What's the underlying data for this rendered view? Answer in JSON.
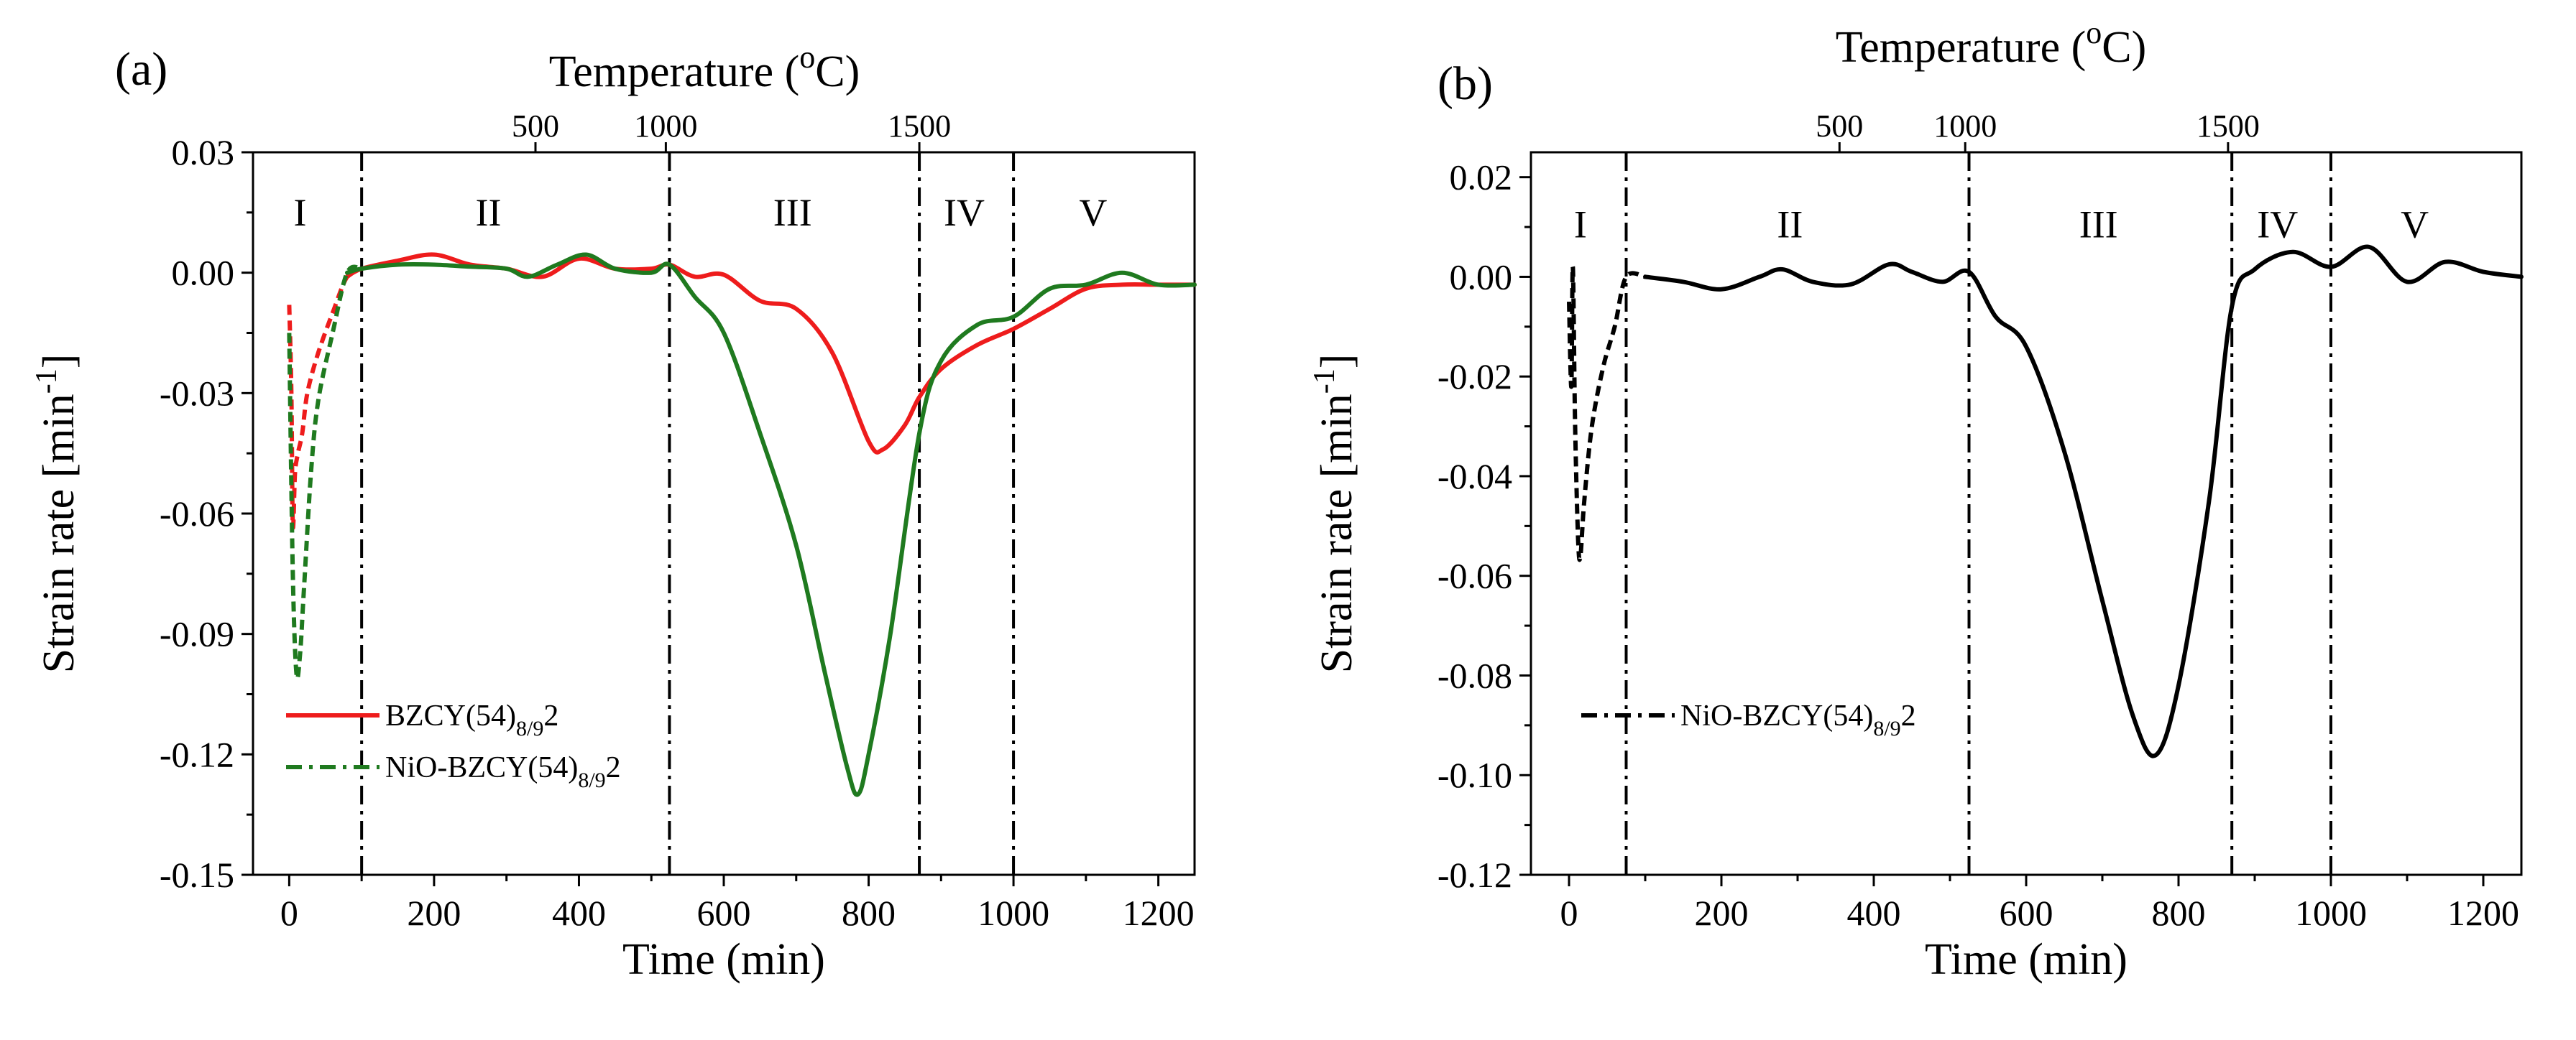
{
  "colors": {
    "red_series": "#ee1c1c",
    "green_series": "#1f7a1f",
    "black_series": "#000000",
    "axis": "#000000"
  },
  "chart_data": [
    {
      "type": "line",
      "panel_label": "(a)",
      "top_axis_title": "Temperature (",
      "top_axis_unit_sup": "o",
      "top_axis_unit_tail": "C)",
      "xlabel": "Time (min)",
      "ylabel_main": "Strain rate [min",
      "ylabel_sup": "-1",
      "ylabel_tail": "]",
      "xlim": [
        -50,
        1250
      ],
      "ylim": [
        -0.15,
        0.03
      ],
      "x_ticks": [
        0,
        200,
        400,
        600,
        800,
        1000,
        1200
      ],
      "x_tick_labels": [
        "0",
        "200",
        "400",
        "600",
        "800",
        "1000",
        "1200"
      ],
      "y_ticks": [
        0.03,
        0.0,
        -0.03,
        -0.06,
        -0.09,
        -0.12,
        -0.15
      ],
      "y_tick_labels": [
        "0.03",
        "0.00",
        "-0.03",
        "-0.06",
        "-0.09",
        "-0.12",
        "-0.15"
      ],
      "top_ticks": [
        {
          "x": 340,
          "label": "500"
        },
        {
          "x": 520,
          "label": "1000"
        },
        {
          "x": 870,
          "label": "1500"
        }
      ],
      "regions": [
        {
          "label": "I",
          "x": 15
        },
        {
          "label": "II",
          "x": 275
        },
        {
          "label": "III",
          "x": 695
        },
        {
          "label": "IV",
          "x": 932
        },
        {
          "label": "V",
          "x": 1110
        }
      ],
      "region_label_y": 0.015,
      "region_boundaries": [
        100,
        525,
        870,
        1000
      ],
      "series": [
        {
          "name": "BZCY(54)",
          "sub": "8/9",
          "tail": "2",
          "color": "#ee1c1c",
          "points": [
            [
              0,
              -0.008
            ],
            [
              3,
              -0.03
            ],
            [
              5,
              -0.063
            ],
            [
              8,
              -0.05
            ],
            [
              12,
              -0.045
            ],
            [
              18,
              -0.04
            ],
            [
              25,
              -0.03
            ],
            [
              40,
              -0.02
            ],
            [
              60,
              -0.01
            ],
            [
              80,
              -0.001
            ],
            [
              100,
              0.001
            ],
            [
              150,
              0.003
            ],
            [
              200,
              0.0045
            ],
            [
              250,
              0.002
            ],
            [
              300,
              0.001
            ],
            [
              350,
              -0.001
            ],
            [
              400,
              0.0035
            ],
            [
              450,
              0.001
            ],
            [
              500,
              0.001
            ],
            [
              525,
              0.002
            ],
            [
              560,
              -0.001
            ],
            [
              600,
              -0.0005
            ],
            [
              650,
              -0.007
            ],
            [
              700,
              -0.009
            ],
            [
              750,
              -0.02
            ],
            [
              800,
              -0.042
            ],
            [
              820,
              -0.044
            ],
            [
              850,
              -0.038
            ],
            [
              870,
              -0.031
            ],
            [
              900,
              -0.024
            ],
            [
              950,
              -0.018
            ],
            [
              1000,
              -0.014
            ],
            [
              1050,
              -0.009
            ],
            [
              1100,
              -0.004
            ],
            [
              1150,
              -0.003
            ],
            [
              1200,
              -0.003
            ],
            [
              1250,
              -0.003
            ]
          ]
        },
        {
          "name": "NiO-BZCY(54)",
          "sub": "8/9",
          "tail": "2",
          "color": "#1f7a1f",
          "points": [
            [
              0,
              -0.015
            ],
            [
              5,
              -0.075
            ],
            [
              10,
              -0.1
            ],
            [
              15,
              -0.095
            ],
            [
              20,
              -0.08
            ],
            [
              30,
              -0.05
            ],
            [
              40,
              -0.032
            ],
            [
              60,
              -0.015
            ],
            [
              80,
              0.0
            ],
            [
              100,
              0.001
            ],
            [
              150,
              0.002
            ],
            [
              200,
              0.002
            ],
            [
              250,
              0.0015
            ],
            [
              300,
              0.001
            ],
            [
              330,
              -0.001
            ],
            [
              370,
              0.002
            ],
            [
              410,
              0.0045
            ],
            [
              450,
              0.001
            ],
            [
              500,
              0.0
            ],
            [
              525,
              0.002
            ],
            [
              560,
              -0.006
            ],
            [
              600,
              -0.015
            ],
            [
              650,
              -0.04
            ],
            [
              700,
              -0.068
            ],
            [
              740,
              -0.1
            ],
            [
              770,
              -0.123
            ],
            [
              785,
              -0.13
            ],
            [
              800,
              -0.12
            ],
            [
              830,
              -0.09
            ],
            [
              870,
              -0.04
            ],
            [
              900,
              -0.022
            ],
            [
              950,
              -0.013
            ],
            [
              1000,
              -0.011
            ],
            [
              1050,
              -0.004
            ],
            [
              1100,
              -0.003
            ],
            [
              1150,
              0.0
            ],
            [
              1200,
              -0.003
            ],
            [
              1250,
              -0.003
            ]
          ]
        }
      ],
      "legend": [
        {
          "name": "BZCY(54)",
          "sub": "8/9",
          "tail": "2",
          "color": "#ee1c1c",
          "style": "solid"
        },
        {
          "name": "NiO-BZCY(54)",
          "sub": "8/9",
          "tail": "2",
          "color": "#1f7a1f",
          "style": "dashdot"
        }
      ]
    },
    {
      "type": "line",
      "panel_label": "(b)",
      "top_axis_title": "Temperature (",
      "top_axis_unit_sup": "o",
      "top_axis_unit_tail": "C)",
      "xlabel": "Time (min)",
      "ylabel_main": "Strain rate [min",
      "ylabel_sup": "-1",
      "ylabel_tail": "]",
      "xlim": [
        -50,
        1250
      ],
      "ylim": [
        -0.12,
        0.025
      ],
      "x_ticks": [
        0,
        200,
        400,
        600,
        800,
        1000,
        1200
      ],
      "x_tick_labels": [
        "0",
        "200",
        "400",
        "600",
        "800",
        "1000",
        "1200"
      ],
      "y_ticks": [
        0.02,
        0.0,
        -0.02,
        -0.04,
        -0.06,
        -0.08,
        -0.1,
        -0.12
      ],
      "y_tick_labels": [
        "0.02",
        "0.00",
        "-0.02",
        "-0.04",
        "-0.06",
        "-0.08",
        "-0.10",
        "-0.12"
      ],
      "top_ticks": [
        {
          "x": 355,
          "label": "500"
        },
        {
          "x": 520,
          "label": "1000"
        },
        {
          "x": 865,
          "label": "1500"
        }
      ],
      "regions": [
        {
          "label": "I",
          "x": 15
        },
        {
          "label": "II",
          "x": 290
        },
        {
          "label": "III",
          "x": 695
        },
        {
          "label": "IV",
          "x": 930
        },
        {
          "label": "V",
          "x": 1110
        }
      ],
      "region_label_y": 0.0105,
      "region_boundaries": [
        75,
        525,
        870,
        1000
      ],
      "series": [
        {
          "name": "NiO-BZCY(54)",
          "sub": "8/9",
          "tail": "2",
          "color": "#000000",
          "points": [
            [
              0,
              -0.005
            ],
            [
              3,
              -0.022
            ],
            [
              5,
              0.002
            ],
            [
              8,
              -0.03
            ],
            [
              12,
              -0.053
            ],
            [
              15,
              -0.056
            ],
            [
              20,
              -0.045
            ],
            [
              30,
              -0.03
            ],
            [
              45,
              -0.018
            ],
            [
              60,
              -0.01
            ],
            [
              75,
              0.0
            ],
            [
              100,
              0.0
            ],
            [
              150,
              -0.001
            ],
            [
              200,
              -0.0025
            ],
            [
              250,
              0.0
            ],
            [
              280,
              0.0015
            ],
            [
              320,
              -0.001
            ],
            [
              370,
              -0.0015
            ],
            [
              420,
              0.0025
            ],
            [
              450,
              0.001
            ],
            [
              490,
              -0.001
            ],
            [
              525,
              0.001
            ],
            [
              560,
              -0.008
            ],
            [
              600,
              -0.014
            ],
            [
              650,
              -0.035
            ],
            [
              700,
              -0.065
            ],
            [
              740,
              -0.088
            ],
            [
              770,
              -0.096
            ],
            [
              800,
              -0.082
            ],
            [
              840,
              -0.045
            ],
            [
              870,
              -0.006
            ],
            [
              900,
              0.0015
            ],
            [
              950,
              0.005
            ],
            [
              1000,
              0.002
            ],
            [
              1050,
              0.006
            ],
            [
              1100,
              -0.001
            ],
            [
              1150,
              0.003
            ],
            [
              1200,
              0.001
            ],
            [
              1250,
              0.0
            ]
          ]
        }
      ],
      "legend": [
        {
          "name": "NiO-BZCY(54)",
          "sub": "8/9",
          "tail": "2",
          "color": "#000000",
          "style": "dashdot"
        }
      ]
    }
  ]
}
